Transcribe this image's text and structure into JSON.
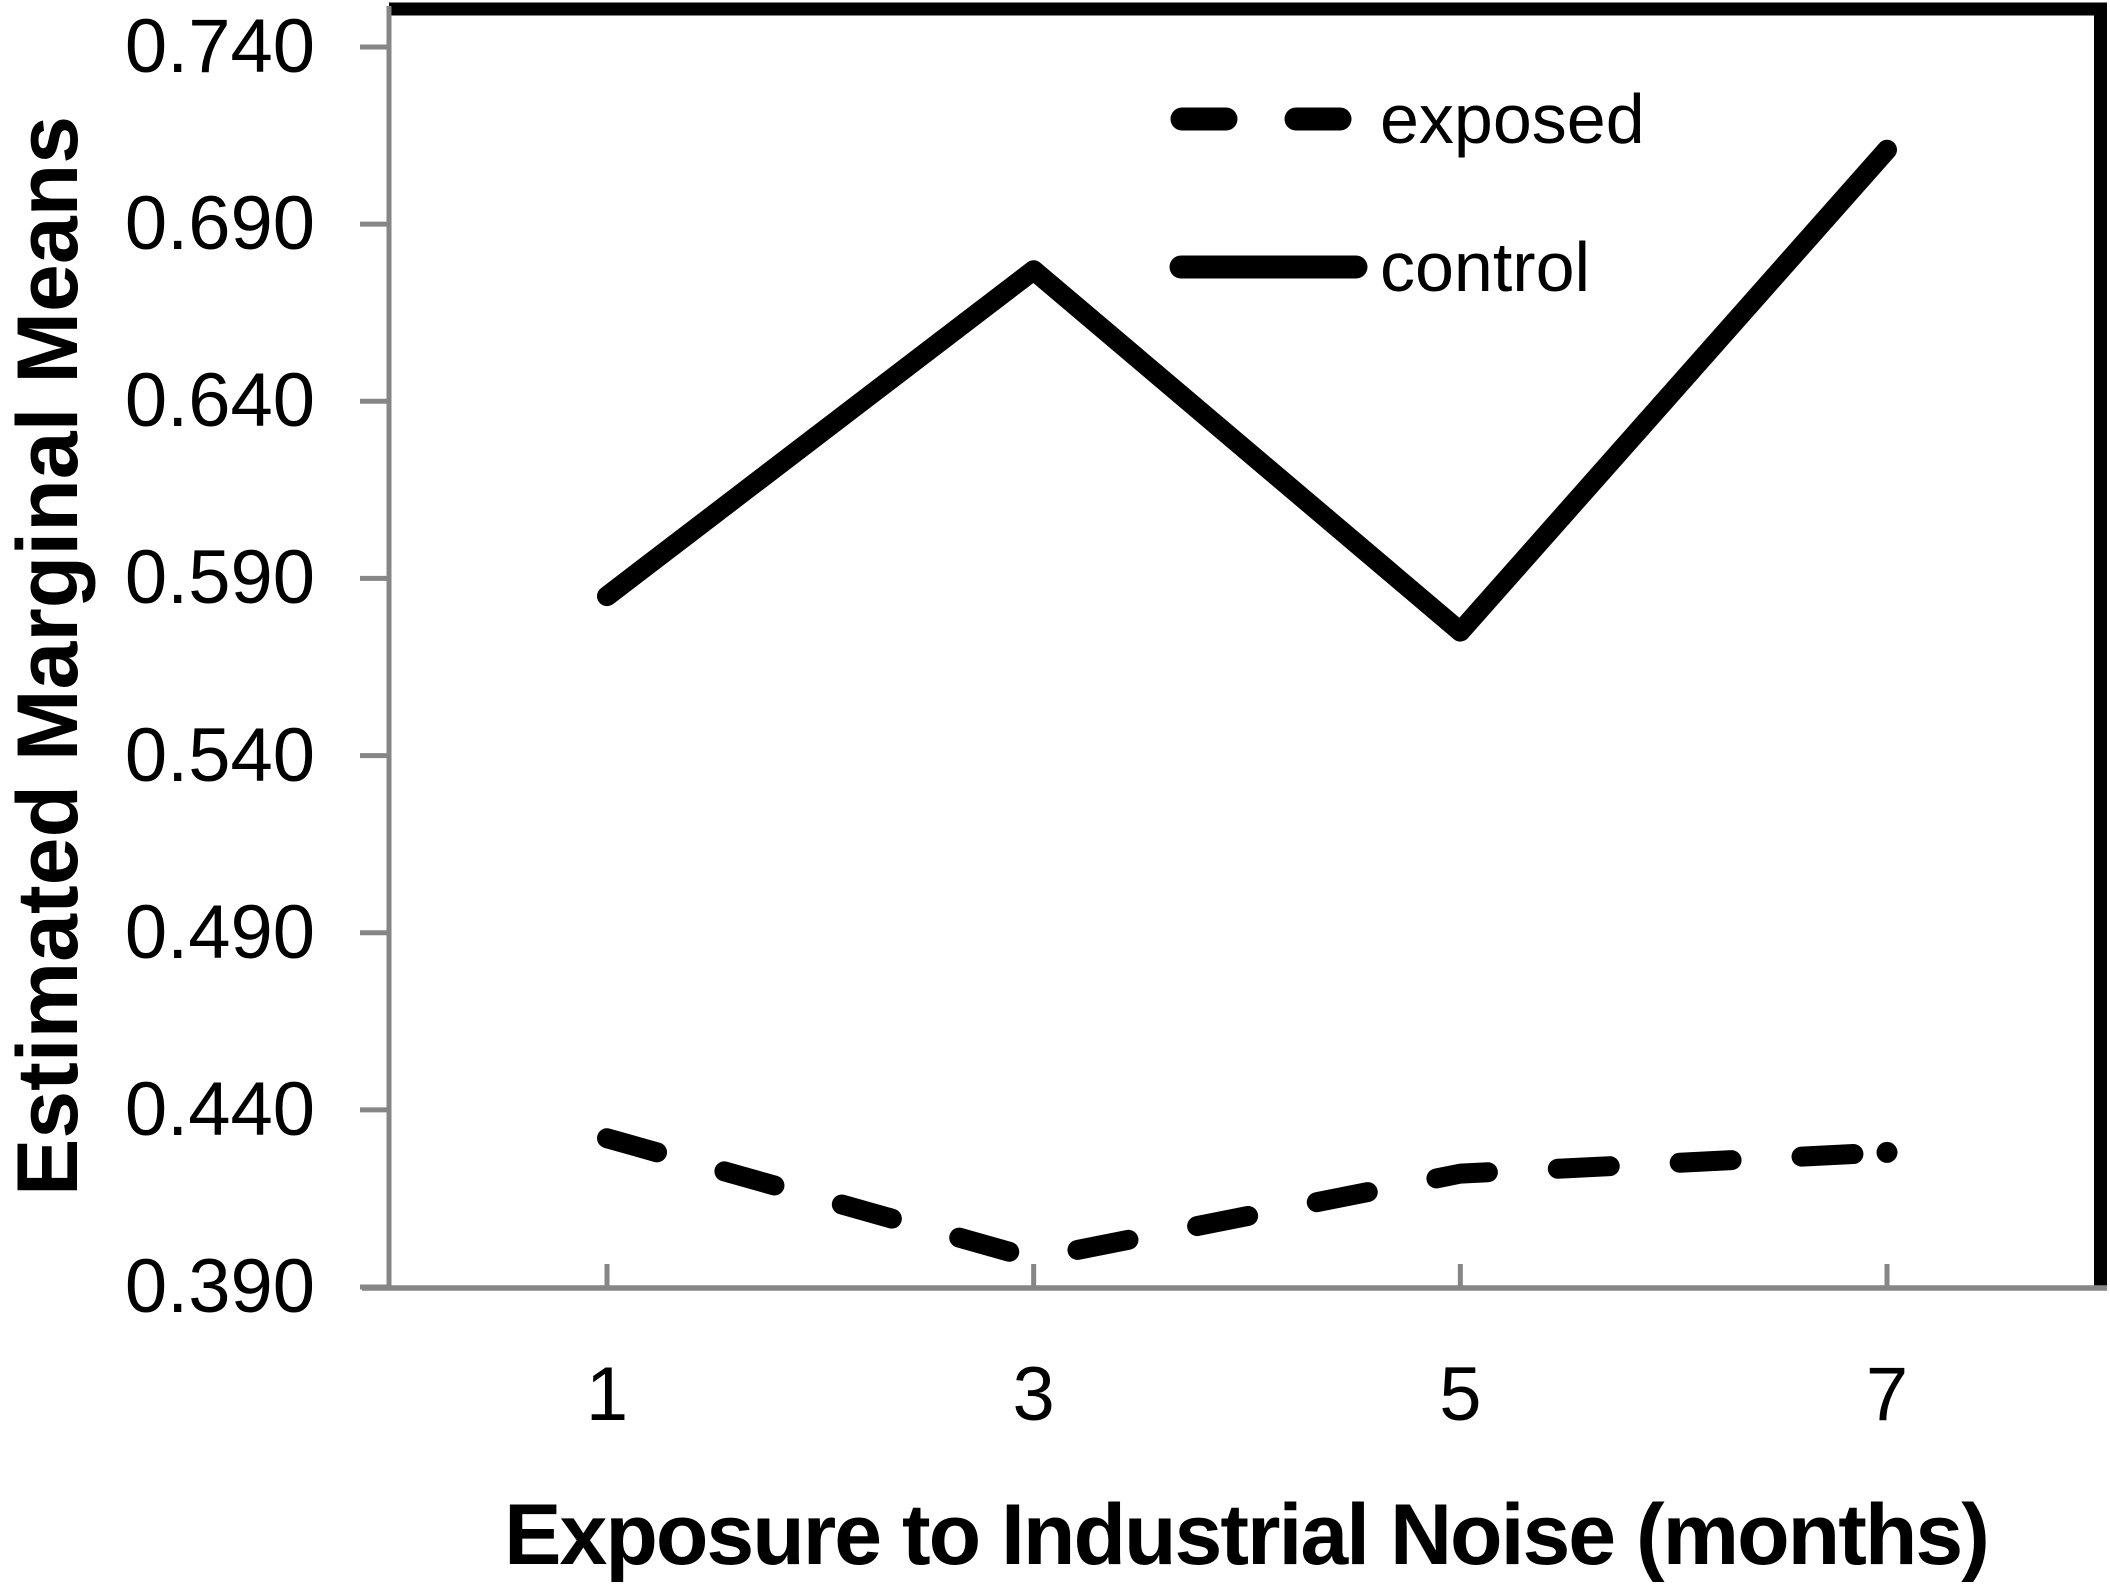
{
  "figure": {
    "background": "#ffffff"
  },
  "y_axis": {
    "title": "Estimated Marginal Means",
    "tick_labels": [
      "0.740",
      "0.690",
      "0.640",
      "0.590",
      "0.540",
      "0.490",
      "0.440",
      "0.390"
    ]
  },
  "x_axis": {
    "title": "Exposure to Industrial Noise (months)",
    "tick_labels": [
      "1",
      "3",
      "5",
      "7"
    ]
  },
  "legend": {
    "items": [
      {
        "label": "exposed",
        "line_style": "dashed"
      },
      {
        "label": "control",
        "line_style": "solid"
      }
    ]
  },
  "colors": {
    "line": "#000000",
    "axis": "#868686",
    "text": "#000000"
  },
  "chart_data": {
    "type": "line",
    "x": [
      1,
      3,
      5,
      7
    ],
    "series": [
      {
        "name": "exposed",
        "line_style": "dashed",
        "values": [
          0.432,
          0.398,
          0.422,
          0.428
        ]
      },
      {
        "name": "control",
        "line_style": "solid",
        "values": [
          0.585,
          0.677,
          0.575,
          0.711
        ]
      }
    ],
    "title": "",
    "xlabel": "Exposure to Industrial Noise (months)",
    "ylabel": "Estimated Marginal Means",
    "ylim": [
      0.39,
      0.74
    ],
    "yticks": [
      0.74,
      0.69,
      0.64,
      0.59,
      0.54,
      0.49,
      0.44,
      0.39
    ],
    "xticks": [
      1,
      3,
      5,
      7
    ],
    "grid": false,
    "legend_position": "top-right-inside",
    "legend_entries": [
      "exposed",
      "control"
    ]
  }
}
